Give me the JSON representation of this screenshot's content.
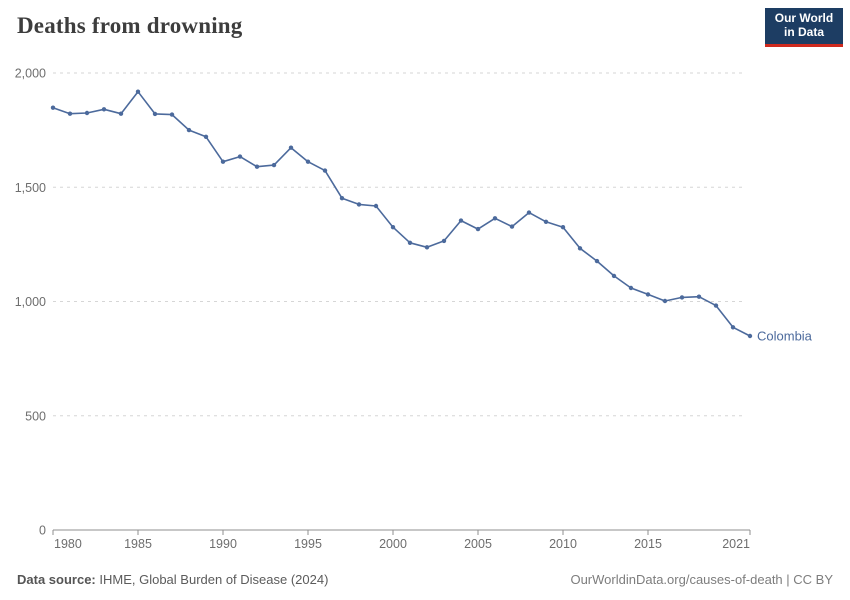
{
  "header": {
    "title": "Deaths from drowning",
    "logo": {
      "line1": "Our World",
      "line2": "in Data",
      "bg_color": "#1d3d63",
      "accent_color": "#cf2a1e",
      "text_color": "#ffffff"
    }
  },
  "chart_data": {
    "type": "line",
    "title": "Deaths from drowning",
    "xlabel": "",
    "ylabel": "",
    "ylim": [
      0,
      2000
    ],
    "yticks": [
      0,
      500,
      1000,
      1500,
      2000
    ],
    "ytick_labels": [
      "0",
      "500",
      "1,000",
      "1,500",
      "2,000"
    ],
    "xticks": [
      1980,
      1985,
      1990,
      1995,
      2000,
      2005,
      2010,
      2015,
      2021
    ],
    "grid": "horizontal-dashed",
    "legend": "end-of-line-label",
    "grid_color": "#d6d6d6",
    "axis_color": "#8f8f8f",
    "tick_label_color": "#6e6e6e",
    "series": [
      {
        "name": "Colombia",
        "color": "#4c6a9c",
        "x": [
          1980,
          1981,
          1982,
          1983,
          1984,
          1985,
          1986,
          1987,
          1988,
          1989,
          1990,
          1991,
          1992,
          1993,
          1994,
          1995,
          1996,
          1997,
          1998,
          1999,
          2000,
          2001,
          2002,
          2003,
          2004,
          2005,
          2006,
          2007,
          2008,
          2009,
          2010,
          2011,
          2012,
          2013,
          2014,
          2015,
          2016,
          2017,
          2018,
          2019,
          2020,
          2021
        ],
        "values": [
          1848,
          1822,
          1825,
          1841,
          1822,
          1918,
          1821,
          1818,
          1750,
          1721,
          1612,
          1634,
          1590,
          1597,
          1673,
          1612,
          1573,
          1452,
          1425,
          1418,
          1325,
          1257,
          1237,
          1265,
          1354,
          1317,
          1364,
          1328,
          1389,
          1349,
          1325,
          1233,
          1177,
          1112,
          1059,
          1031,
          1002,
          1018,
          1021,
          982,
          887,
          849
        ]
      }
    ]
  },
  "footer": {
    "source_label": "Data source:",
    "source_text": "IHME, Global Burden of Disease (2024)",
    "attribution": "OurWorldinData.org/causes-of-death | CC BY"
  }
}
